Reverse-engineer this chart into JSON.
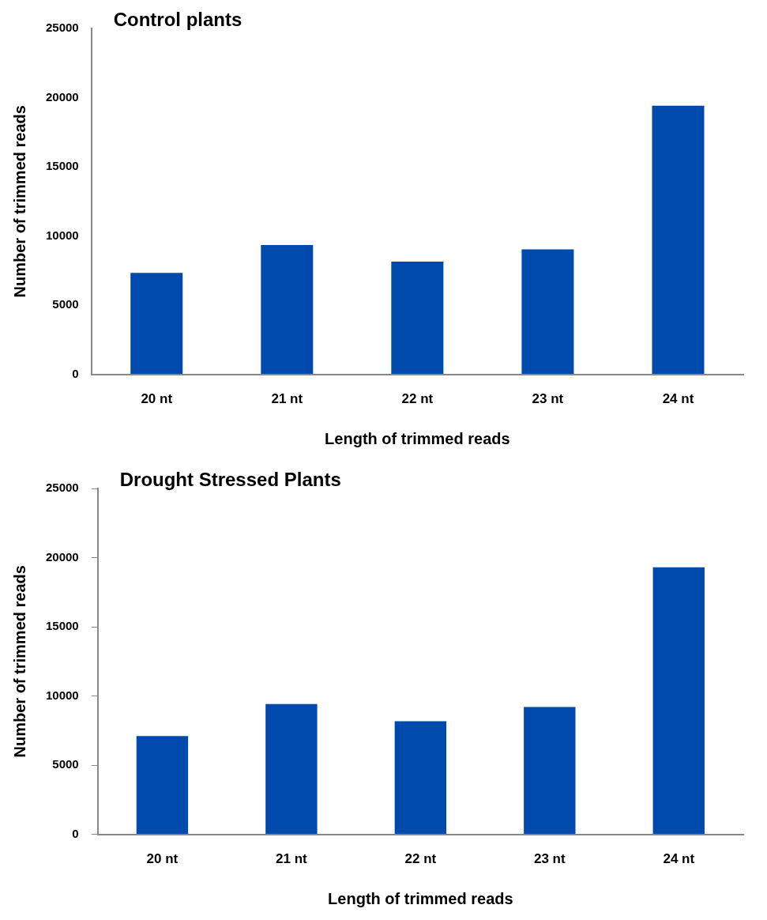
{
  "chart_data": [
    {
      "type": "bar",
      "title": "Control plants",
      "xlabel": "Length of trimmed reads",
      "ylabel": "Number of trimmed reads",
      "categories": [
        "20 nt",
        "21 nt",
        "22 nt",
        "23 nt",
        "24 nt"
      ],
      "values": [
        7330,
        9350,
        8150,
        9030,
        19420
      ],
      "color": "#004aad",
      "ylim": [
        0,
        25000
      ],
      "yticks": [
        0,
        5000,
        10000,
        15000,
        20000,
        25000
      ],
      "grid": false,
      "legend": false
    },
    {
      "type": "bar",
      "title": "Drought Stressed Plants",
      "xlabel": "Length of trimmed reads",
      "ylabel": "Number of trimmed reads",
      "categories": [
        "20 nt",
        "21 nt",
        "22 nt",
        "23 nt",
        "24 nt"
      ],
      "values": [
        7110,
        9420,
        8180,
        9200,
        19300
      ],
      "color": "#004aad",
      "ylim": [
        0,
        25000
      ],
      "yticks": [
        0,
        5000,
        10000,
        15000,
        20000,
        25000
      ],
      "grid": false,
      "legend": false
    }
  ]
}
